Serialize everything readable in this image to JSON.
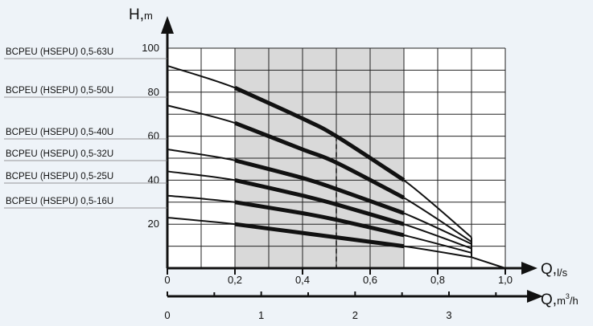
{
  "chart_data": {
    "type": "line",
    "title": "",
    "xlabel": "Q,",
    "xlabel_unit": "l/s",
    "ylabel": "H,",
    "ylabel_unit": "m",
    "secondary_xlabel": "Q,",
    "secondary_xlabel_unit_base": "m",
    "secondary_xlabel_unit_sup": "3",
    "secondary_xlabel_unit_tail": "/h",
    "x_range": [
      0,
      1.0
    ],
    "y_range": [
      0,
      100
    ],
    "x_ticks": [
      {
        "value": 0,
        "label": "0"
      },
      {
        "value": 0.2,
        "label": "0,2"
      },
      {
        "value": 0.4,
        "label": "0,4"
      },
      {
        "value": 0.6,
        "label": "0,6"
      },
      {
        "value": 0.8,
        "label": "0,8"
      },
      {
        "value": 1.0,
        "label": "1,0"
      }
    ],
    "y_ticks": [
      {
        "value": 20,
        "label": "20"
      },
      {
        "value": 40,
        "label": "40"
      },
      {
        "value": 60,
        "label": "60"
      },
      {
        "value": 80,
        "label": "80"
      },
      {
        "value": 100,
        "label": "100"
      }
    ],
    "secondary_x_range": [
      0,
      3.6
    ],
    "secondary_x_ticks": [
      {
        "value": 0,
        "label": "0"
      },
      {
        "value": 1,
        "label": "1"
      },
      {
        "value": 2,
        "label": "2"
      },
      {
        "value": 3,
        "label": "3"
      }
    ],
    "secondary_x_minor_ticks": [
      0.5,
      1.5,
      2.5,
      3.5
    ],
    "grid": true,
    "recommended_range": [
      0.2,
      0.7
    ],
    "duty_point_x": 0.5,
    "colors": {
      "background": "#eef3f8",
      "plot_area": "#ffffff",
      "shaded_range": "#d9d9d9",
      "curve": "#111111",
      "grid": "#222222"
    },
    "series": [
      {
        "name": "BCPEU (HSEPU) 0,5-63U",
        "x": [
          0,
          0.2,
          0.4,
          0.5,
          0.7,
          0.9
        ],
        "y": [
          92,
          82,
          68,
          60,
          40,
          14
        ]
      },
      {
        "name": "BCPEU (HSEPU) 0,5-50U",
        "x": [
          0,
          0.2,
          0.4,
          0.5,
          0.7,
          0.9
        ],
        "y": [
          74,
          66,
          54,
          48,
          32,
          12
        ]
      },
      {
        "name": "BCPEU (HSEPU) 0,5-40U",
        "x": [
          0,
          0.2,
          0.4,
          0.5,
          0.7,
          0.9
        ],
        "y": [
          54,
          49,
          41,
          36,
          25,
          11
        ]
      },
      {
        "name": "BCPEU (HSEPU) 0,5-32U",
        "x": [
          0,
          0.2,
          0.4,
          0.5,
          0.7,
          0.9
        ],
        "y": [
          44,
          40,
          33,
          29,
          20,
          9
        ]
      },
      {
        "name": "BCPEU (HSEPU) 0,5-25U",
        "x": [
          0,
          0.2,
          0.4,
          0.5,
          0.7,
          0.9
        ],
        "y": [
          33,
          30,
          25,
          22,
          15,
          7
        ]
      },
      {
        "name": "BCPEU (HSEPU) 0,5-16U",
        "x": [
          0,
          0.2,
          0.4,
          0.5,
          0.7,
          0.9
        ],
        "y": [
          23,
          20,
          16,
          14,
          10,
          5
        ]
      }
    ]
  }
}
